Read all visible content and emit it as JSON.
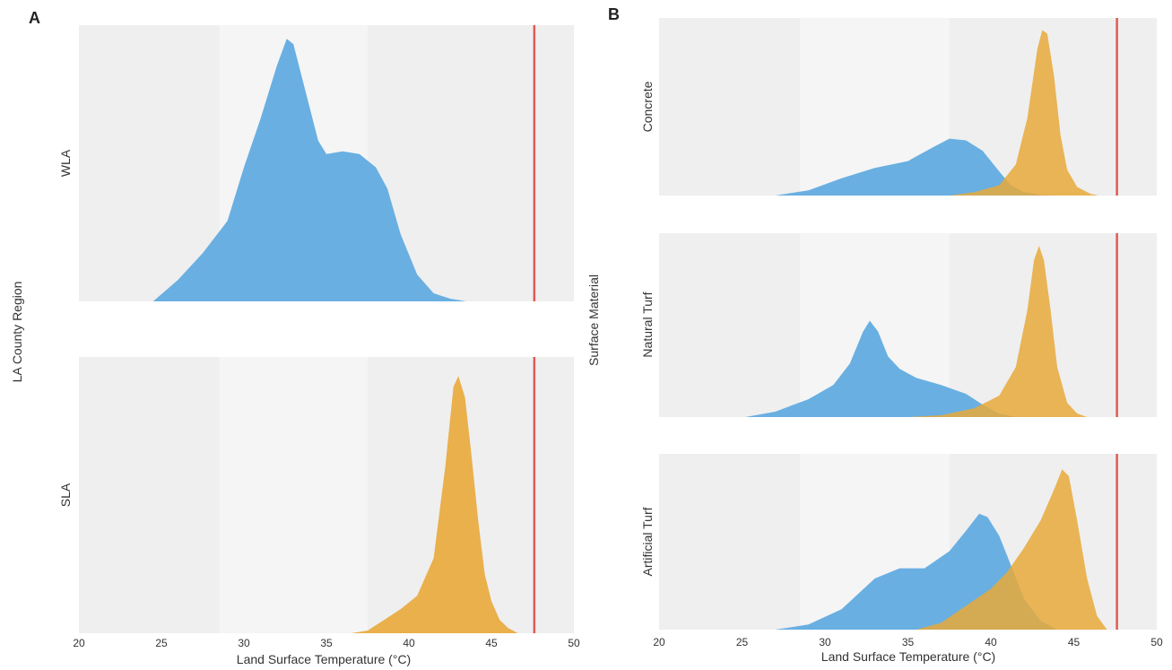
{
  "colors": {
    "wla": "#5aa7e0",
    "sla": "#e8a93a",
    "threshold_line": "#e05a55",
    "panel_bg": "#efefef",
    "panel_bg_band": "#f5f5f5"
  },
  "chart_data": [
    {
      "panel": "A",
      "type": "area",
      "subtype": "density",
      "ylabel": "LA County Region",
      "xlabel": "Land Surface Temperature (°C)",
      "xlim": [
        20,
        50
      ],
      "xticks": [
        20,
        25,
        30,
        35,
        40,
        45,
        50
      ],
      "vline": 47.6,
      "facets": [
        {
          "label": "WLA",
          "series": [
            {
              "color": "wla",
              "x": [
                24.5,
                26,
                27.5,
                29,
                30,
                31,
                32,
                32.6,
                33,
                33.5,
                34,
                34.5,
                35,
                36,
                37,
                38,
                38.7,
                39.5,
                40.5,
                41.5,
                42.5,
                43.5
              ],
              "y": [
                0,
                0.08,
                0.18,
                0.3,
                0.5,
                0.68,
                0.88,
                0.98,
                0.96,
                0.84,
                0.72,
                0.6,
                0.55,
                0.56,
                0.55,
                0.5,
                0.42,
                0.25,
                0.1,
                0.03,
                0.01,
                0
              ]
            }
          ]
        },
        {
          "label": "SLA",
          "series": [
            {
              "color": "sla",
              "x": [
                36.5,
                37.5,
                38.5,
                39.5,
                40.5,
                41.5,
                42.2,
                42.7,
                43.0,
                43.4,
                43.8,
                44.2,
                44.6,
                45.0,
                45.5,
                46.0,
                46.6
              ],
              "y": [
                0,
                0.01,
                0.05,
                0.09,
                0.14,
                0.28,
                0.62,
                0.92,
                0.96,
                0.88,
                0.66,
                0.42,
                0.22,
                0.12,
                0.05,
                0.02,
                0
              ]
            }
          ]
        }
      ]
    },
    {
      "panel": "B",
      "type": "area",
      "subtype": "density",
      "ylabel": "Surface Material",
      "xlabel": "Land Surface Temperature (°C)",
      "xlim": [
        20,
        50
      ],
      "xticks": [
        20,
        25,
        30,
        35,
        40,
        45,
        50
      ],
      "vline": 47.6,
      "facets": [
        {
          "label": "Concrete",
          "series": [
            {
              "color": "wla",
              "x": [
                27.0,
                29.0,
                31.0,
                33.0,
                35.0,
                36.5,
                37.5,
                38.5,
                39.5,
                40.5,
                41.2,
                42.0,
                43.0,
                44.0
              ],
              "y": [
                0,
                0.03,
                0.1,
                0.16,
                0.2,
                0.28,
                0.33,
                0.32,
                0.26,
                0.14,
                0.06,
                0.02,
                0.005,
                0
              ]
            },
            {
              "color": "sla",
              "x": [
                37.5,
                39.0,
                40.5,
                41.5,
                42.2,
                42.8,
                43.1,
                43.4,
                43.8,
                44.2,
                44.6,
                45.2,
                46.0,
                46.5
              ],
              "y": [
                0,
                0.02,
                0.06,
                0.18,
                0.45,
                0.85,
                0.96,
                0.94,
                0.7,
                0.35,
                0.15,
                0.05,
                0.01,
                0
              ]
            }
          ]
        },
        {
          "label": "Natural Turf",
          "series": [
            {
              "color": "wla",
              "x": [
                25.2,
                27.0,
                29.0,
                30.5,
                31.5,
                32.3,
                32.7,
                33.2,
                33.8,
                34.5,
                35.5,
                37.0,
                38.5,
                39.5,
                40.5,
                41.5
              ],
              "y": [
                0,
                0.03,
                0.1,
                0.18,
                0.3,
                0.48,
                0.54,
                0.48,
                0.34,
                0.27,
                0.22,
                0.18,
                0.13,
                0.07,
                0.02,
                0
              ]
            },
            {
              "color": "sla",
              "x": [
                35.0,
                37.0,
                39.0,
                40.5,
                41.5,
                42.2,
                42.6,
                42.9,
                43.2,
                43.6,
                44.0,
                44.6,
                45.2,
                45.8
              ],
              "y": [
                0,
                0.01,
                0.05,
                0.12,
                0.28,
                0.6,
                0.88,
                0.96,
                0.88,
                0.6,
                0.28,
                0.08,
                0.02,
                0
              ]
            }
          ]
        },
        {
          "label": "Artificial Turf",
          "series": [
            {
              "color": "wla",
              "x": [
                27.0,
                29.0,
                31.0,
                33.0,
                34.5,
                36.0,
                37.5,
                38.5,
                39.3,
                39.8,
                40.5,
                41.2,
                42.0,
                43.0,
                44.0
              ],
              "y": [
                0,
                0.03,
                0.12,
                0.3,
                0.36,
                0.36,
                0.46,
                0.58,
                0.68,
                0.66,
                0.55,
                0.38,
                0.18,
                0.05,
                0
              ]
            },
            {
              "color": "sla",
              "x": [
                35.5,
                37.0,
                38.5,
                40.0,
                41.0,
                42.0,
                43.0,
                43.8,
                44.3,
                44.7,
                45.2,
                45.8,
                46.4,
                47.0
              ],
              "y": [
                0,
                0.04,
                0.14,
                0.24,
                0.34,
                0.48,
                0.64,
                0.82,
                0.94,
                0.9,
                0.64,
                0.3,
                0.08,
                0
              ]
            }
          ]
        }
      ]
    }
  ]
}
